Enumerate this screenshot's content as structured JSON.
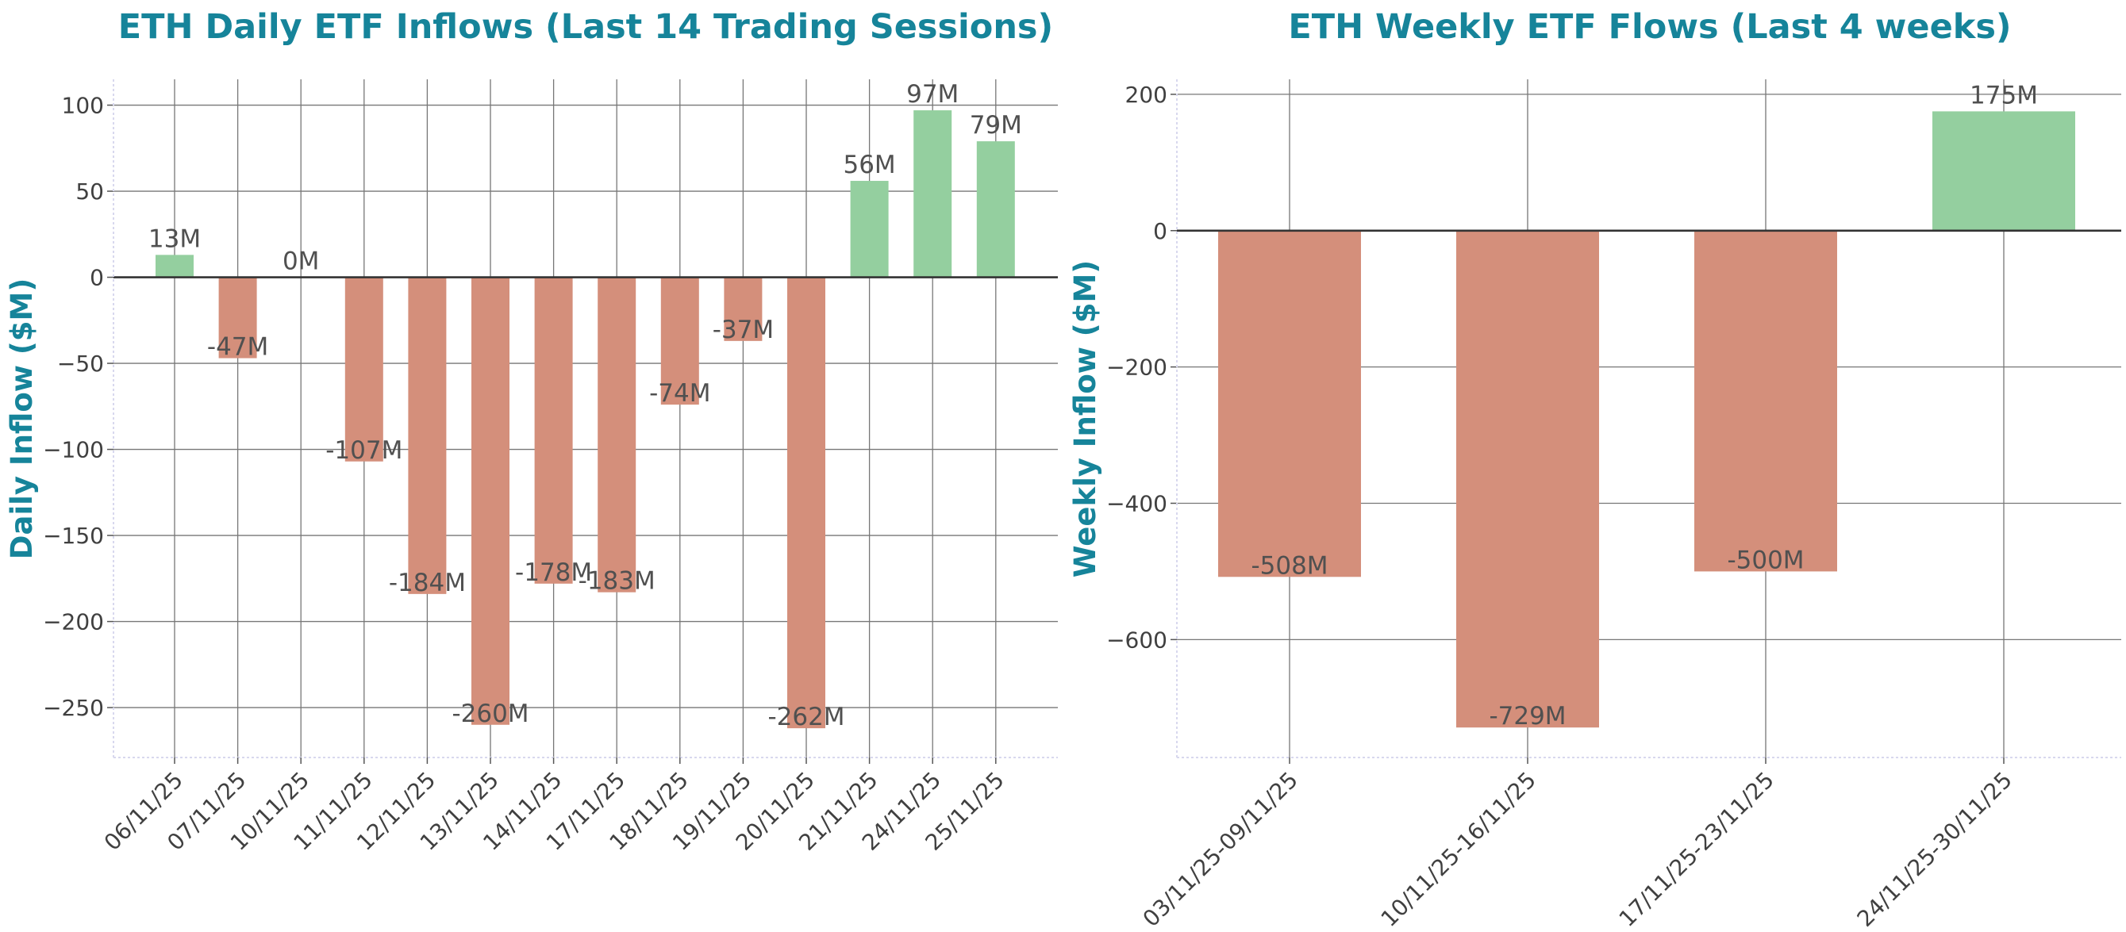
{
  "chart_data": [
    {
      "type": "bar",
      "title": "ETH Daily ETF Inflows (Last 14 Trading Sessions)",
      "xlabel": "",
      "ylabel": "Daily Inflow ($M)",
      "categories": [
        "06/11/25",
        "07/11/25",
        "10/11/25",
        "11/11/25",
        "12/11/25",
        "13/11/25",
        "14/11/25",
        "17/11/25",
        "18/11/25",
        "19/11/25",
        "20/11/25",
        "21/11/25",
        "24/11/25",
        "25/11/25"
      ],
      "values": [
        13,
        -47,
        0,
        -107,
        -184,
        -260,
        -178,
        -183,
        -74,
        -37,
        -262,
        56,
        97,
        79
      ],
      "data_labels": [
        "13M",
        "-47M",
        "0M",
        "-107M",
        "-184M",
        "-260M",
        "-178M",
        "-183M",
        "-74M",
        "-37M",
        "-262M",
        "56M",
        "97M",
        "79M"
      ],
      "yticks": [
        100,
        50,
        0,
        -50,
        -100,
        -150,
        -200,
        -250
      ],
      "ytick_labels": [
        "100",
        "50",
        "0",
        "−50",
        "−100",
        "−150",
        "−200",
        "−250"
      ],
      "ylim": [
        -279,
        115
      ],
      "grid": true,
      "colors": {
        "positive": "#94cf9f",
        "negative": "#d48f7b"
      }
    },
    {
      "type": "bar",
      "title": "ETH Weekly ETF Flows (Last 4 weeks)",
      "xlabel": "",
      "ylabel": "Weekly Inflow ($M)",
      "categories": [
        "03/11/25-09/11/25",
        "10/11/25-16/11/25",
        "17/11/25-23/11/25",
        "24/11/25-30/11/25"
      ],
      "values": [
        -508,
        -729,
        -500,
        175
      ],
      "data_labels": [
        "-508M",
        "-729M",
        "-500M",
        "175M"
      ],
      "yticks": [
        200,
        0,
        -200,
        -400,
        -600
      ],
      "ytick_labels": [
        "200",
        "0",
        "−200",
        "−400",
        "−600"
      ],
      "ylim": [
        -773,
        222
      ],
      "grid": true,
      "colors": {
        "positive": "#94cf9f",
        "negative": "#d48f7b"
      }
    }
  ]
}
